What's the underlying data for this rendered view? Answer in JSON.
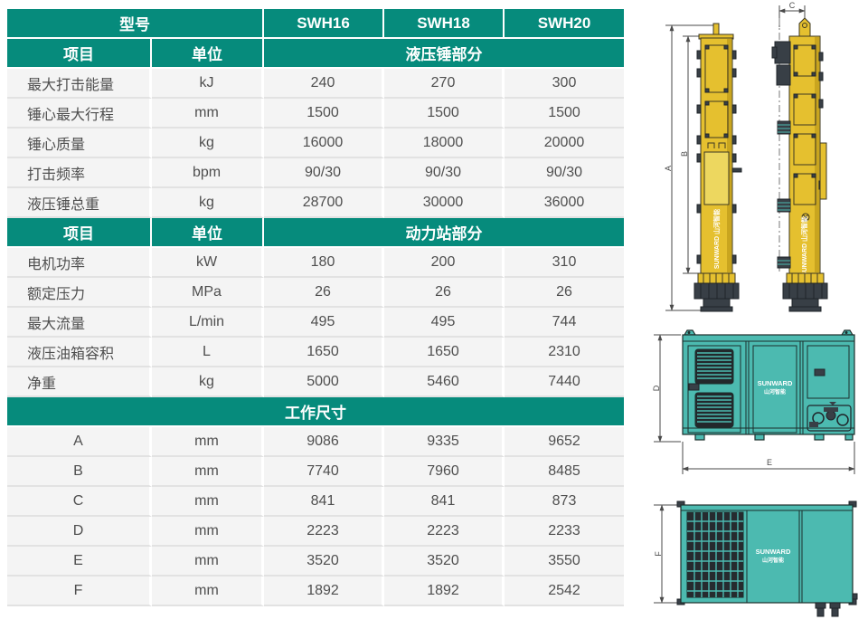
{
  "table": {
    "model_header": "型号",
    "models": [
      "SWH16",
      "SWH18",
      "SWH20"
    ],
    "sections": [
      {
        "layout": "split",
        "item_header": "项目",
        "unit_header": "单位",
        "title": "液压锤部分",
        "rows": [
          {
            "item": "最大打击能量",
            "unit": "kJ",
            "values": [
              "240",
              "270",
              "300"
            ]
          },
          {
            "item": "锤心最大行程",
            "unit": "mm",
            "values": [
              "1500",
              "1500",
              "1500"
            ]
          },
          {
            "item": "锤心质量",
            "unit": "kg",
            "values": [
              "16000",
              "18000",
              "20000"
            ]
          },
          {
            "item": "打击频率",
            "unit": "bpm",
            "values": [
              "90/30",
              "90/30",
              "90/30"
            ]
          },
          {
            "item": "液压锤总重",
            "unit": "kg",
            "values": [
              "28700",
              "30000",
              "36000"
            ]
          }
        ]
      },
      {
        "layout": "split",
        "item_header": "项目",
        "unit_header": "单位",
        "title": "动力站部分",
        "rows": [
          {
            "item": "电机功率",
            "unit": "kW",
            "values": [
              "180",
              "200",
              "310"
            ]
          },
          {
            "item": "额定压力",
            "unit": "MPa",
            "values": [
              "26",
              "26",
              "26"
            ]
          },
          {
            "item": "最大流量",
            "unit": "L/min",
            "values": [
              "495",
              "495",
              "744"
            ]
          },
          {
            "item": "液压油箱容积",
            "unit": "L",
            "values": [
              "1650",
              "1650",
              "2310"
            ]
          },
          {
            "item": "净重",
            "unit": "kg",
            "values": [
              "5000",
              "5460",
              "7440"
            ]
          }
        ]
      },
      {
        "layout": "full",
        "title": "工作尺寸",
        "rows": [
          {
            "item": "A",
            "unit": "mm",
            "values": [
              "9086",
              "9335",
              "9652"
            ]
          },
          {
            "item": "B",
            "unit": "mm",
            "values": [
              "7740",
              "7960",
              "8485"
            ]
          },
          {
            "item": "C",
            "unit": "mm",
            "values": [
              "841",
              "841",
              "873"
            ]
          },
          {
            "item": "D",
            "unit": "mm",
            "values": [
              "2223",
              "2223",
              "2233"
            ]
          },
          {
            "item": "E",
            "unit": "mm",
            "values": [
              "3520",
              "3520",
              "3550"
            ]
          },
          {
            "item": "F",
            "unit": "mm",
            "values": [
              "1892",
              "1892",
              "2542"
            ]
          }
        ]
      }
    ]
  },
  "diagrams": {
    "dim_labels": {
      "a": "A",
      "b": "B",
      "c": "C",
      "d": "D",
      "e": "E",
      "f": "F"
    },
    "brand_vertical": "SUNWARD 山河智能",
    "brand_en": "SUNWARD",
    "brand_cn": "山河智能"
  },
  "colors": {
    "header_teal": "#068b7c",
    "machine_teal": "#4cbab0",
    "machine_yellow": "#e5c02f",
    "dark_metal": "#383f46",
    "row_background": "#f4f4f4",
    "table_text": "#4f4f4f"
  }
}
